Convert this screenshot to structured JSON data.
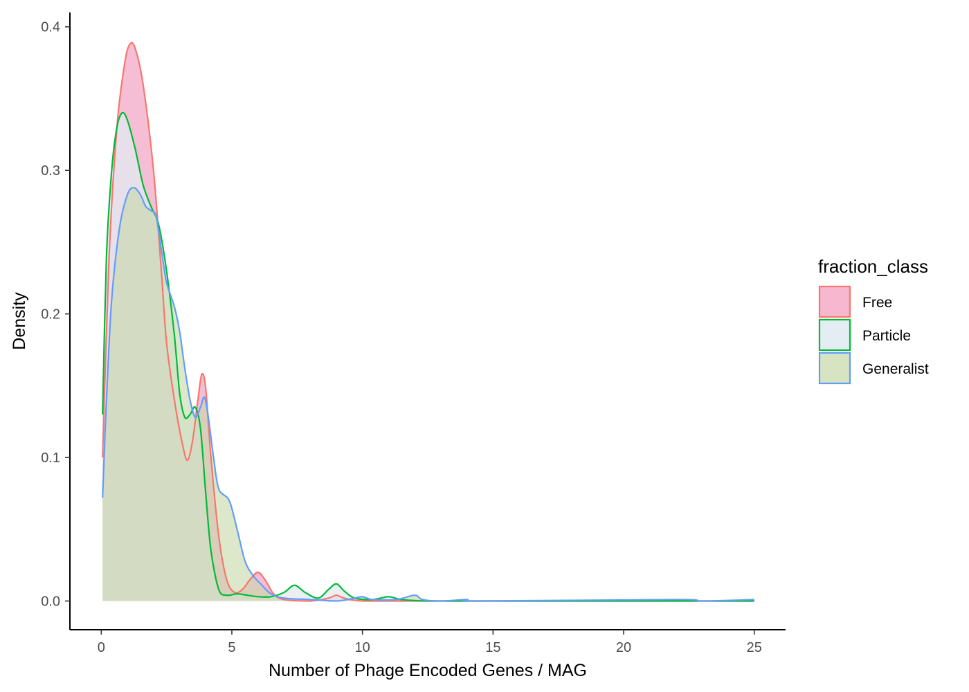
{
  "chart_data": {
    "type": "area",
    "xlabel": "Number of Phage Encoded Genes / MAG",
    "ylabel": "Density",
    "xlim": [
      -1.2,
      26.2
    ],
    "ylim": [
      -0.02,
      0.41
    ],
    "x_ticks": [
      0,
      5,
      10,
      15,
      20,
      25
    ],
    "y_ticks": [
      0.0,
      0.1,
      0.2,
      0.3,
      0.4
    ],
    "x_tick_labels": [
      "0",
      "5",
      "10",
      "15",
      "20",
      "25"
    ],
    "y_tick_labels": [
      "0.0",
      "0.1",
      "0.2",
      "0.3",
      "0.4"
    ],
    "grid": false,
    "legend": {
      "title": "fraction_class",
      "placement": "right"
    },
    "series": [
      {
        "name": "Free",
        "line_color": "#F8766D",
        "fill_color": "#F5B3CC",
        "fill_opacity": 0.85,
        "points": [
          [
            0.05,
            0.1
          ],
          [
            0.3,
            0.24
          ],
          [
            0.6,
            0.33
          ],
          [
            0.9,
            0.375
          ],
          [
            1.1,
            0.388
          ],
          [
            1.3,
            0.385
          ],
          [
            1.6,
            0.36
          ],
          [
            2.0,
            0.3
          ],
          [
            2.3,
            0.23
          ],
          [
            2.5,
            0.18
          ],
          [
            2.8,
            0.14
          ],
          [
            3.1,
            0.11
          ],
          [
            3.3,
            0.098
          ],
          [
            3.5,
            0.112
          ],
          [
            3.7,
            0.14
          ],
          [
            3.85,
            0.158
          ],
          [
            4.0,
            0.148
          ],
          [
            4.2,
            0.1
          ],
          [
            4.5,
            0.045
          ],
          [
            4.8,
            0.015
          ],
          [
            5.1,
            0.006
          ],
          [
            5.4,
            0.008
          ],
          [
            5.7,
            0.015
          ],
          [
            6.0,
            0.02
          ],
          [
            6.3,
            0.014
          ],
          [
            6.6,
            0.005
          ],
          [
            7.0,
            0.001
          ],
          [
            8.0,
            0.0
          ],
          [
            8.7,
            0.002
          ],
          [
            9.0,
            0.004
          ],
          [
            9.3,
            0.002
          ],
          [
            10.0,
            0.0
          ],
          [
            12.0,
            0.0
          ],
          [
            25.0,
            0.0
          ]
        ]
      },
      {
        "name": "Particle",
        "line_color": "#00BA38",
        "fill_color": "#E1EAF2",
        "fill_opacity": 0.75,
        "points": [
          [
            0.05,
            0.13
          ],
          [
            0.2,
            0.24
          ],
          [
            0.4,
            0.3
          ],
          [
            0.6,
            0.33
          ],
          [
            0.8,
            0.34
          ],
          [
            1.0,
            0.335
          ],
          [
            1.3,
            0.315
          ],
          [
            1.6,
            0.29
          ],
          [
            1.9,
            0.275
          ],
          [
            2.2,
            0.262
          ],
          [
            2.5,
            0.23
          ],
          [
            2.8,
            0.185
          ],
          [
            3.0,
            0.145
          ],
          [
            3.2,
            0.128
          ],
          [
            3.4,
            0.13
          ],
          [
            3.6,
            0.135
          ],
          [
            3.8,
            0.12
          ],
          [
            4.0,
            0.075
          ],
          [
            4.2,
            0.035
          ],
          [
            4.5,
            0.008
          ],
          [
            4.8,
            0.004
          ],
          [
            5.2,
            0.005
          ],
          [
            5.6,
            0.004
          ],
          [
            6.0,
            0.003
          ],
          [
            6.5,
            0.003
          ],
          [
            7.0,
            0.006
          ],
          [
            7.4,
            0.011
          ],
          [
            7.8,
            0.006
          ],
          [
            8.3,
            0.002
          ],
          [
            8.7,
            0.008
          ],
          [
            9.0,
            0.012
          ],
          [
            9.3,
            0.007
          ],
          [
            9.7,
            0.002
          ],
          [
            10.4,
            0.001
          ],
          [
            11.0,
            0.003
          ],
          [
            11.5,
            0.001
          ],
          [
            12.5,
            0.0
          ],
          [
            14.0,
            0.0
          ],
          [
            25.0,
            0.0
          ]
        ]
      },
      {
        "name": "Generalist",
        "line_color": "#619CFF",
        "fill_color": "#C6D9A7",
        "fill_opacity": 0.6,
        "points": [
          [
            0.05,
            0.072
          ],
          [
            0.2,
            0.14
          ],
          [
            0.4,
            0.21
          ],
          [
            0.7,
            0.26
          ],
          [
            1.0,
            0.283
          ],
          [
            1.25,
            0.288
          ],
          [
            1.5,
            0.283
          ],
          [
            1.7,
            0.275
          ],
          [
            1.9,
            0.272
          ],
          [
            2.1,
            0.268
          ],
          [
            2.3,
            0.245
          ],
          [
            2.5,
            0.222
          ],
          [
            2.8,
            0.205
          ],
          [
            3.0,
            0.188
          ],
          [
            3.2,
            0.162
          ],
          [
            3.4,
            0.14
          ],
          [
            3.6,
            0.128
          ],
          [
            3.8,
            0.135
          ],
          [
            3.95,
            0.142
          ],
          [
            4.1,
            0.128
          ],
          [
            4.3,
            0.1
          ],
          [
            4.5,
            0.078
          ],
          [
            4.9,
            0.07
          ],
          [
            5.2,
            0.05
          ],
          [
            5.5,
            0.028
          ],
          [
            5.8,
            0.018
          ],
          [
            6.1,
            0.012
          ],
          [
            6.5,
            0.005
          ],
          [
            7.0,
            0.002
          ],
          [
            8.0,
            0.001
          ],
          [
            9.0,
            0.0
          ],
          [
            9.7,
            0.002
          ],
          [
            10.0,
            0.003
          ],
          [
            10.4,
            0.001
          ],
          [
            11.3,
            0.001
          ],
          [
            12.0,
            0.004
          ],
          [
            12.3,
            0.001
          ],
          [
            13.0,
            0.0
          ],
          [
            14.0,
            0.001
          ],
          [
            14.5,
            0.0
          ],
          [
            22.0,
            0.001
          ],
          [
            23.0,
            0.0
          ],
          [
            25.0,
            0.001
          ]
        ]
      }
    ]
  }
}
